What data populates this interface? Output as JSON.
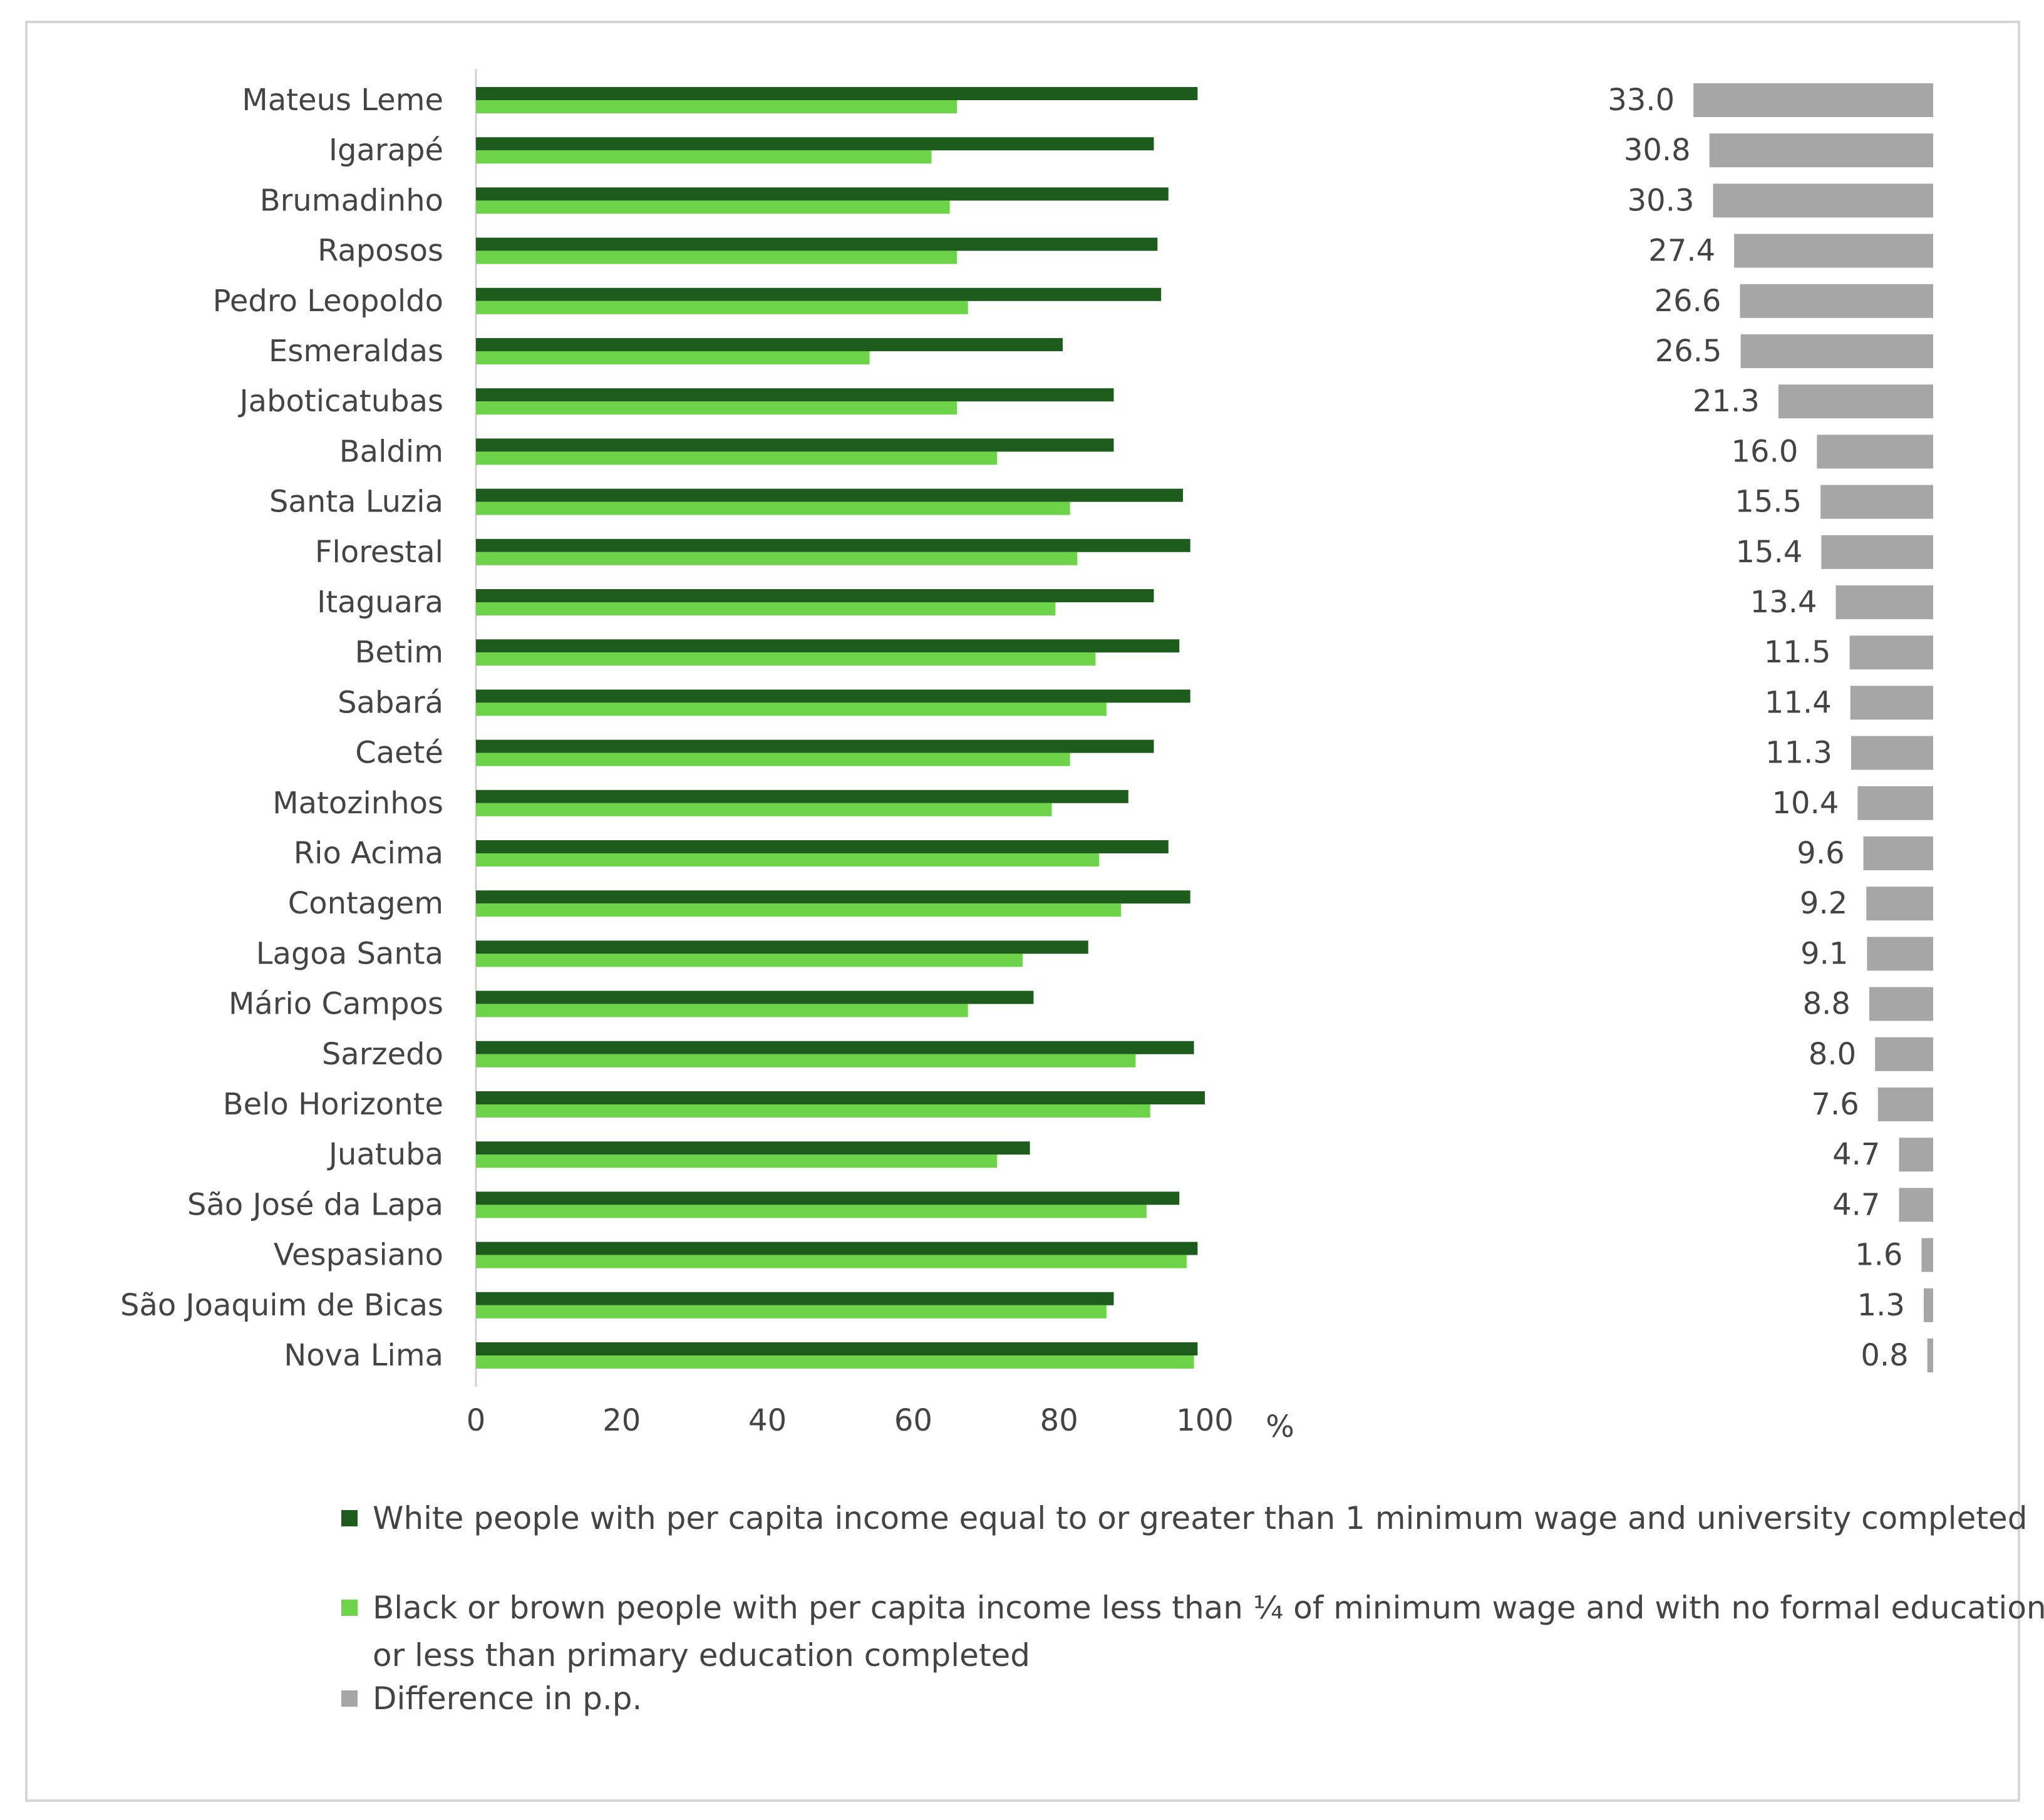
{
  "chart_data": {
    "type": "bar",
    "orientation": "horizontal",
    "categories": [
      "Mateus Leme",
      "Igarapé",
      "Brumadinho",
      "Raposos",
      "Pedro Leopoldo",
      "Esmeraldas",
      "Jaboticatubas",
      "Baldim",
      "Santa Luzia",
      "Florestal",
      "Itaguara",
      "Betim",
      "Sabará",
      "Caeté",
      "Matozinhos",
      "Rio Acima",
      "Contagem",
      "Lagoa Santa",
      "Mário Campos",
      "Sarzedo",
      "Belo Horizonte",
      "Juatuba",
      "São José da Lapa",
      "Vespasiano",
      "São Joaquim de Bicas",
      "Nova Lima"
    ],
    "series": [
      {
        "name": "White people with per capita income equal to or greater than 1 minimum wage and university completed",
        "color": "#1e5c1e",
        "values": [
          99,
          93,
          95,
          93.5,
          94,
          80.5,
          87.5,
          87.5,
          97,
          98,
          93,
          96.5,
          98,
          93,
          89.5,
          95,
          98,
          84,
          76.5,
          98.5,
          100,
          76,
          96.5,
          99,
          87.5,
          99
        ]
      },
      {
        "name": "Black or brown people with per capita income less than ¼ of minimum wage and with no formal education or less than primary education completed",
        "color": "#6dd44a",
        "values": [
          66,
          62.5,
          65,
          66,
          67.5,
          54,
          66,
          71.5,
          81.5,
          82.5,
          79.5,
          85,
          86.5,
          81.5,
          79,
          85.5,
          88.5,
          75,
          67.5,
          90.5,
          92.5,
          71.5,
          92,
          97.5,
          86.5,
          98.5
        ]
      },
      {
        "name": "Difference in p.p.",
        "color": "#a6a6a6",
        "values": [
          33.0,
          30.8,
          30.3,
          27.4,
          26.6,
          26.5,
          21.3,
          16.0,
          15.5,
          15.4,
          13.4,
          11.5,
          11.4,
          11.3,
          10.4,
          9.6,
          9.2,
          9.1,
          8.8,
          8.0,
          7.6,
          4.7,
          4.7,
          1.6,
          1.3,
          0.8
        ],
        "labels": [
          "33.0",
          "30.8",
          "30.3",
          "27.4",
          "26.6",
          "26.5",
          "21.3",
          "16.0",
          "15.5",
          "15.4",
          "13.4",
          "11.5",
          "11.4",
          "11.3",
          "10.4",
          "9.6",
          "9.2",
          "9.1",
          "8.8",
          "8.0",
          "7.6",
          "4.7",
          "4.7",
          "1.6",
          "1.3",
          "0.8"
        ]
      }
    ],
    "xlim": [
      0,
      100
    ],
    "xticks": [
      "0",
      "20",
      "40",
      "60",
      "80",
      "100"
    ],
    "xunit": "%",
    "title": "",
    "legend": [
      {
        "text": "White people with per capita income equal to or greater than 1 minimum wage and university completed",
        "color": "#1e5c1e"
      },
      {
        "text": "Black or brown people with per capita income less than ¼ of minimum wage and with no formal education or less than primary education completed",
        "color": "#6dd44a"
      },
      {
        "text": "Difference in p.p.",
        "color": "#a6a6a6"
      }
    ]
  }
}
